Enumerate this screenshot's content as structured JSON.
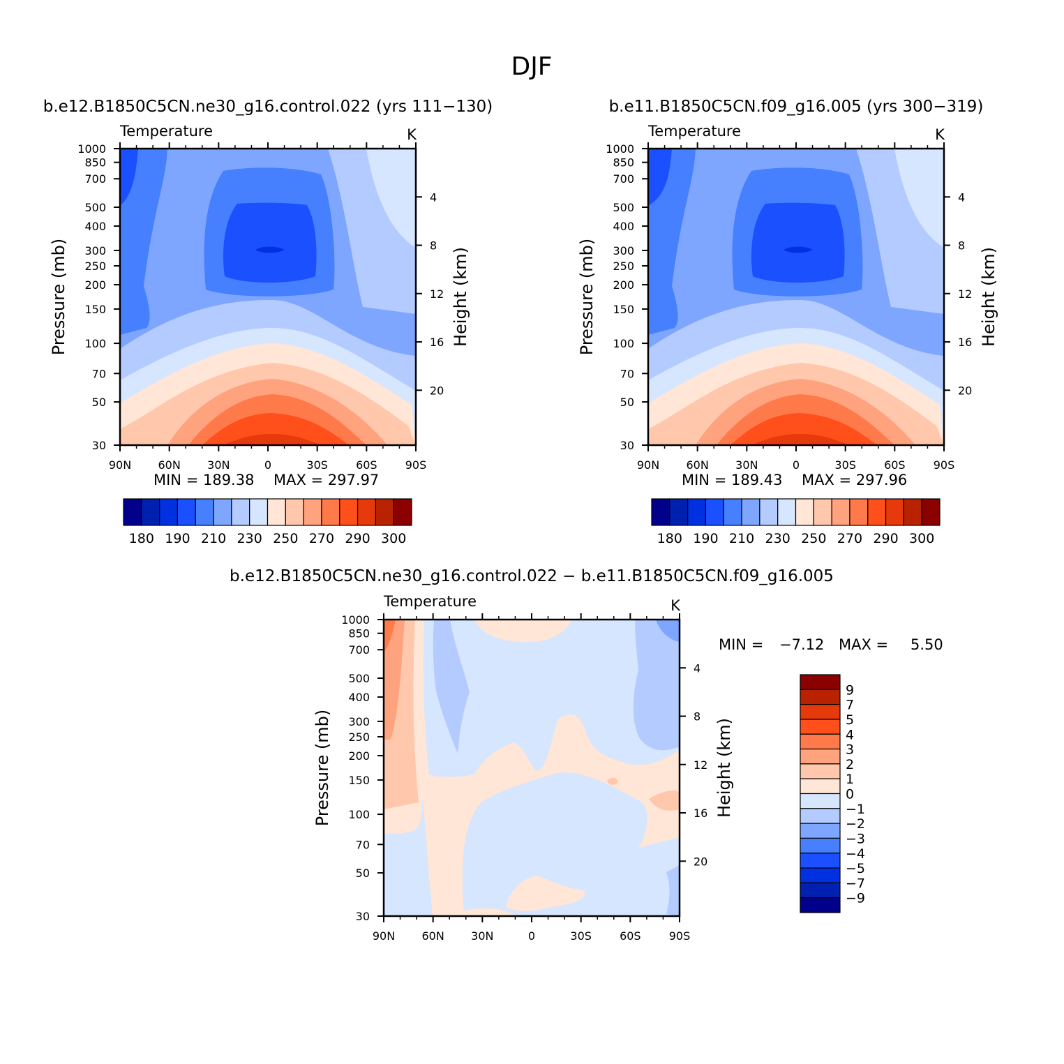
{
  "figure_title": "DJF",
  "colors": {
    "abs_palette": [
      "#00008b",
      "#0020b0",
      "#0030e0",
      "#1a50ff",
      "#4680ff",
      "#7ea6ff",
      "#b3cbff",
      "#d6e6ff",
      "#ffe6d6",
      "#ffc8ad",
      "#ffa27e",
      "#ff7a4a",
      "#ff4f1a",
      "#e63a0d",
      "#b82200",
      "#8b0000"
    ],
    "diff_palette": [
      "#00008b",
      "#0020b0",
      "#0030e0",
      "#1a50ff",
      "#4680ff",
      "#7ea6ff",
      "#b3cbff",
      "#d6e6ff",
      "#ffe6d6",
      "#ffc8ad",
      "#ffa27e",
      "#ff7a4a",
      "#ff4f1a",
      "#e63a0d",
      "#b82200",
      "#8b0000"
    ]
  },
  "chart_data": [
    {
      "type": "heatmap",
      "title": "b.e12.B1850C5CN.ne30_g16.control.022 (yrs 111-130)",
      "title_display": "b.e12.B1850C5CN.ne30_g16.control.022 (yrs 111−130)",
      "variable": "Temperature",
      "units": "K",
      "xlabel": "",
      "ylabel": "Pressure (mb)",
      "y2label": "Height (km)",
      "x_ticks": [
        "90N",
        "60N",
        "30N",
        "0",
        "30S",
        "60S",
        "90S"
      ],
      "y_ticks": [
        30,
        50,
        70,
        100,
        150,
        200,
        250,
        300,
        400,
        500,
        700,
        850,
        1000
      ],
      "y2_ticks": [
        4,
        8,
        12,
        16,
        20
      ],
      "min_label": "MIN = 189.38",
      "max_label": "MAX = 297.97",
      "min": 189.38,
      "max": 297.97,
      "colorbar_labels": [
        "180",
        "190",
        "210",
        "230",
        "250",
        "270",
        "290",
        "300"
      ],
      "colorbar_levels": [
        180,
        185,
        190,
        200,
        210,
        220,
        230,
        240,
        250,
        260,
        270,
        280,
        290,
        295,
        300
      ]
    },
    {
      "type": "heatmap",
      "title": "b.e11.B1850C5CN.f09_g16.005 (yrs 300-319)",
      "title_display": "b.e11.B1850C5CN.f09_g16.005 (yrs 300−319)",
      "variable": "Temperature",
      "units": "K",
      "xlabel": "",
      "ylabel": "Pressure (mb)",
      "y2label": "Height (km)",
      "x_ticks": [
        "90N",
        "60N",
        "30N",
        "0",
        "30S",
        "60S",
        "90S"
      ],
      "y_ticks": [
        30,
        50,
        70,
        100,
        150,
        200,
        250,
        300,
        400,
        500,
        700,
        850,
        1000
      ],
      "y2_ticks": [
        4,
        8,
        12,
        16,
        20
      ],
      "min_label": "MIN = 189.43",
      "max_label": "MAX = 297.96",
      "min": 189.43,
      "max": 297.96,
      "colorbar_labels": [
        "180",
        "190",
        "210",
        "230",
        "250",
        "270",
        "290",
        "300"
      ],
      "colorbar_levels": [
        180,
        185,
        190,
        200,
        210,
        220,
        230,
        240,
        250,
        260,
        270,
        280,
        290,
        295,
        300
      ]
    },
    {
      "type": "heatmap",
      "title": "b.e12.B1850C5CN.ne30_g16.control.022 - b.e11.B1850C5CN.f09_g16.005",
      "title_display": "b.e12.B1850C5CN.ne30_g16.control.022 − b.e11.B1850C5CN.f09_g16.005",
      "variable": "Temperature",
      "units": "K",
      "xlabel": "",
      "ylabel": "Pressure (mb)",
      "y2label": "Height (km)",
      "x_ticks": [
        "90N",
        "60N",
        "30N",
        "0",
        "30S",
        "60S",
        "90S"
      ],
      "y_ticks": [
        30,
        50,
        70,
        100,
        150,
        200,
        250,
        300,
        400,
        500,
        700,
        850,
        1000
      ],
      "y2_ticks": [
        4,
        8,
        12,
        16,
        20
      ],
      "min_label": "MIN =",
      "min_value": "−7.12",
      "max_label": "MAX =",
      "max_value": "5.50",
      "min": -7.12,
      "max": 5.5,
      "colorbar_labels": [
        "9",
        "7",
        "5",
        "4",
        "3",
        "2",
        "1",
        "0",
        "−1",
        "−2",
        "−3",
        "−4",
        "−5",
        "−7",
        "−9"
      ],
      "colorbar_levels": [
        -9,
        -7,
        -5,
        -4,
        -3,
        -2,
        -1,
        0,
        1,
        2,
        3,
        4,
        5,
        7,
        9
      ]
    }
  ]
}
